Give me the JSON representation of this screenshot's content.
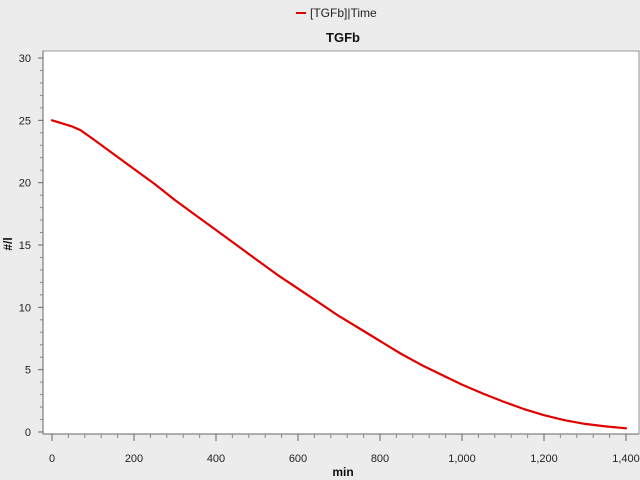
{
  "chart_data": {
    "type": "line",
    "title": "TGFb",
    "xlabel": "min",
    "ylabel": "#/l",
    "xlim": [
      0,
      1400
    ],
    "ylim": [
      0,
      30
    ],
    "xticks": [
      0,
      200,
      400,
      600,
      800,
      1000,
      1200,
      1400
    ],
    "xtick_labels": [
      "0",
      "200",
      "400",
      "600",
      "800",
      "1,000",
      "1,200",
      "1,400"
    ],
    "yticks": [
      0,
      5,
      10,
      15,
      20,
      25,
      30
    ],
    "ytick_labels": [
      "0",
      "5",
      "10",
      "15",
      "20",
      "25",
      "30"
    ],
    "grid": false,
    "legend_position": "top-center",
    "series": [
      {
        "name": "[TGFb]|Time",
        "color": "#e00000",
        "x": [
          0,
          50,
          70,
          100,
          150,
          200,
          250,
          300,
          350,
          400,
          450,
          500,
          550,
          600,
          650,
          700,
          750,
          800,
          850,
          900,
          950,
          1000,
          1050,
          1100,
          1150,
          1200,
          1250,
          1300,
          1350,
          1400
        ],
        "y": [
          25.0,
          24.5,
          24.2,
          23.5,
          22.3,
          21.1,
          19.9,
          18.6,
          17.4,
          16.2,
          15.0,
          13.8,
          12.6,
          11.5,
          10.4,
          9.3,
          8.3,
          7.3,
          6.3,
          5.4,
          4.6,
          3.8,
          3.1,
          2.45,
          1.85,
          1.35,
          0.95,
          0.65,
          0.45,
          0.3
        ]
      }
    ]
  }
}
